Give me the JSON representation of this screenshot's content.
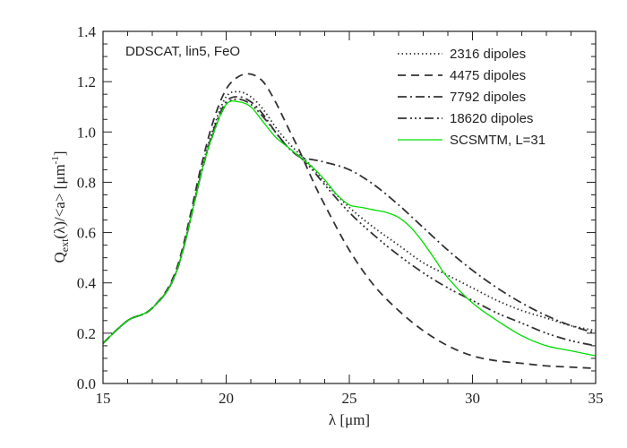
{
  "chart_data": {
    "type": "line",
    "annotation": "DDSCAT, lin5, FeO",
    "xlabel": "λ [μm]",
    "ylabel": "Q<sub>ext</sub>(λ)/<a> [μm<sup>-1</sup>]",
    "ylabel_parts": {
      "q": "Q",
      "sub": "ext",
      "mid": "(λ)/<a> [μm",
      "sup": "-1",
      "end": "]"
    },
    "xlim": [
      15,
      35
    ],
    "ylim": [
      0.0,
      1.4
    ],
    "x_ticks": [
      15,
      20,
      25,
      30,
      35
    ],
    "y_ticks": [
      0.0,
      0.2,
      0.4,
      0.6,
      0.8,
      1.0,
      1.2,
      1.4
    ],
    "y_tick_labels": [
      "0.0",
      "0.2",
      "0.4",
      "0.6",
      "0.8",
      "1.0",
      "1.2",
      "1.4"
    ],
    "grid": false,
    "legend_position": "top-right",
    "series": [
      {
        "name": "2316 dipoles",
        "style": "dotted",
        "color": "#333333",
        "x": [
          15,
          16,
          17,
          18,
          19,
          19.5,
          20,
          20.5,
          21,
          21.5,
          22,
          22.5,
          23,
          23.5,
          24,
          25,
          26,
          27,
          28,
          29,
          30,
          31,
          32,
          33,
          34,
          35
        ],
        "y": [
          0.16,
          0.25,
          0.3,
          0.45,
          0.85,
          1.02,
          1.14,
          1.16,
          1.14,
          1.09,
          1.02,
          0.96,
          0.91,
          0.86,
          0.8,
          0.7,
          0.62,
          0.55,
          0.48,
          0.43,
          0.38,
          0.33,
          0.29,
          0.26,
          0.23,
          0.21
        ]
      },
      {
        "name": "4475 dipoles",
        "style": "dashed",
        "color": "#333333",
        "x": [
          15,
          16,
          17,
          18,
          19,
          19.5,
          20,
          20.5,
          21,
          21.5,
          22,
          22.5,
          23,
          23.5,
          24,
          25,
          26,
          27,
          28,
          29,
          30,
          31,
          32,
          33,
          34,
          35
        ],
        "y": [
          0.16,
          0.25,
          0.3,
          0.46,
          0.87,
          1.05,
          1.17,
          1.22,
          1.23,
          1.2,
          1.12,
          1.02,
          0.92,
          0.81,
          0.71,
          0.53,
          0.39,
          0.29,
          0.21,
          0.15,
          0.11,
          0.09,
          0.08,
          0.07,
          0.065,
          0.06
        ]
      },
      {
        "name": "7792 dipoles",
        "style": "dashdot",
        "color": "#333333",
        "x": [
          15,
          16,
          17,
          18,
          19,
          19.5,
          20,
          20.5,
          21,
          21.5,
          22,
          22.5,
          23,
          23.5,
          24,
          25,
          26,
          27,
          28,
          29,
          30,
          31,
          32,
          33,
          34,
          35
        ],
        "y": [
          0.16,
          0.25,
          0.3,
          0.45,
          0.84,
          1.01,
          1.12,
          1.14,
          1.12,
          1.07,
          1.0,
          0.94,
          0.9,
          0.89,
          0.88,
          0.85,
          0.79,
          0.71,
          0.62,
          0.53,
          0.45,
          0.38,
          0.32,
          0.27,
          0.23,
          0.2
        ]
      },
      {
        "name": "18620 dipoles",
        "style": "dashdotdotdot",
        "color": "#333333",
        "x": [
          15,
          16,
          17,
          18,
          19,
          19.5,
          20,
          20.5,
          21,
          21.5,
          22,
          22.5,
          23,
          23.5,
          24,
          25,
          26,
          27,
          28,
          29,
          30,
          31,
          32,
          33,
          34,
          35
        ],
        "y": [
          0.16,
          0.25,
          0.3,
          0.45,
          0.84,
          1.0,
          1.11,
          1.13,
          1.11,
          1.06,
          1.0,
          0.94,
          0.9,
          0.85,
          0.79,
          0.68,
          0.59,
          0.51,
          0.44,
          0.38,
          0.33,
          0.28,
          0.24,
          0.2,
          0.17,
          0.15
        ]
      },
      {
        "name": "SCSMTM, L=31",
        "style": "solid",
        "color": "#00dd00",
        "x": [
          15,
          16,
          17,
          18,
          19,
          19.5,
          20,
          20.5,
          21,
          21.5,
          22,
          22.5,
          23,
          23.5,
          24,
          24.5,
          25,
          25.5,
          26,
          26.5,
          27,
          27.5,
          28,
          28.5,
          29,
          30,
          31,
          32,
          33,
          34,
          35
        ],
        "y": [
          0.16,
          0.25,
          0.3,
          0.45,
          0.84,
          1.0,
          1.11,
          1.12,
          1.1,
          1.04,
          0.98,
          0.94,
          0.9,
          0.86,
          0.81,
          0.75,
          0.71,
          0.7,
          0.69,
          0.68,
          0.66,
          0.62,
          0.56,
          0.49,
          0.42,
          0.32,
          0.25,
          0.19,
          0.15,
          0.13,
          0.11
        ]
      }
    ]
  }
}
